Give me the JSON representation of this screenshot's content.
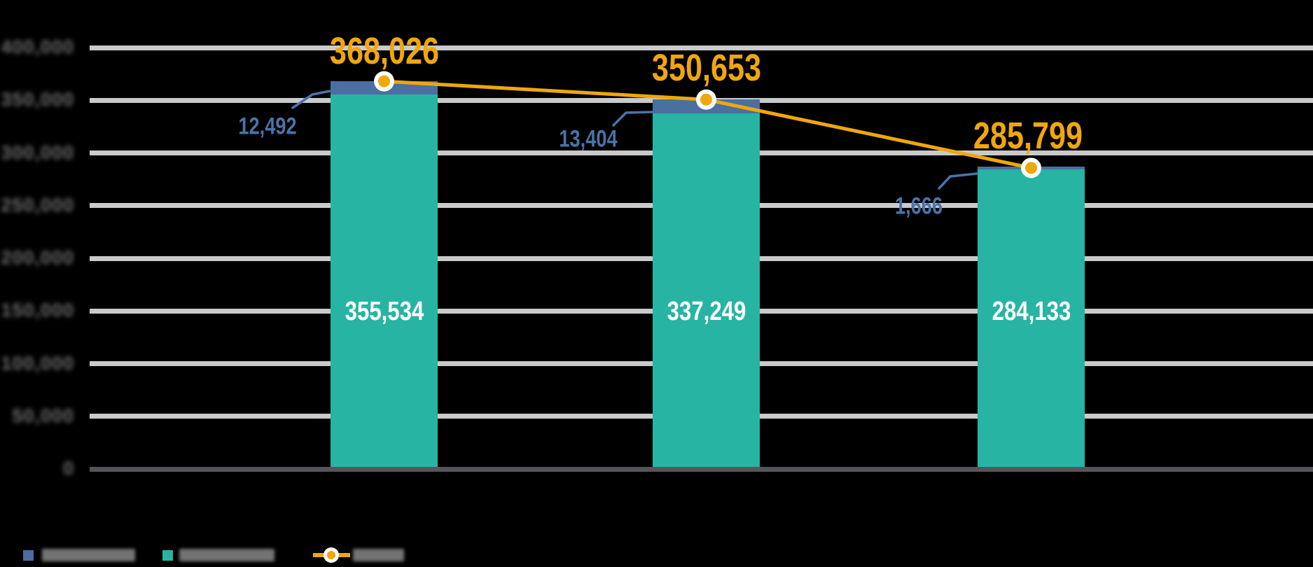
{
  "chart_data": {
    "type": "bar",
    "subtype": "stacked-bars-with-total-line",
    "title": "",
    "background": "#000000",
    "categories": [
      "",
      "",
      ""
    ],
    "x_axis_labels_visible": false,
    "series": [
      {
        "name": "",
        "name_redacted_blurred": true,
        "role": "bar-segment-bottom",
        "color": "#27B4A3",
        "values": [
          355534,
          337249,
          284133
        ],
        "labels": [
          "355,534",
          "337,249",
          "284,133"
        ]
      },
      {
        "name": "",
        "name_redacted_blurred": true,
        "role": "bar-segment-top-cap",
        "color": "#4A6FA0",
        "values": [
          12492,
          13404,
          1666
        ],
        "labels": [
          "12,492",
          "13,404",
          "1,666"
        ]
      },
      {
        "name": "",
        "name_redacted_blurred": true,
        "role": "line-of-totals",
        "color": "#F0A70C",
        "values": [
          368026,
          350653,
          285799
        ],
        "labels": [
          "368,026",
          "350,653",
          "285,799"
        ]
      }
    ],
    "ylim": [
      0,
      400000
    ],
    "yticks": {
      "values": [
        400000,
        350000,
        300000,
        250000,
        200000,
        150000,
        100000,
        50000,
        0
      ],
      "labels": [
        "400,000",
        "350,000",
        "300,000",
        "250,000",
        "200,000",
        "150,000",
        "100,000",
        "50,000",
        "0"
      ],
      "redacted_blurred": true
    },
    "grid": "horizontal",
    "legend": {
      "position": "bottom-left",
      "items": [
        {
          "swatch": "square",
          "color": "#4A6FA0",
          "label": "",
          "label_redacted_blurred": true
        },
        {
          "swatch": "square",
          "color": "#27B4A3",
          "label": "",
          "label_redacted_blurred": true
        },
        {
          "swatch": "line-marker",
          "color": "#F0A70C",
          "label": "",
          "label_redacted_blurred": true
        }
      ]
    },
    "colors": {
      "bar_teal": "#27B4A3",
      "bar_cap_blue": "#4A6FA0",
      "line_yellow": "#F0A70C",
      "annotation_blue_text": "#4A73A7",
      "gridline_light": "#C9CACB",
      "axis_baseline_dark": "#55565A",
      "bar_value_text": "#FFFFFF",
      "ytick_text_blurred": "#6B6B6B",
      "legend_text_blob": "#737373",
      "marker_halo": "#FFFFFF",
      "background": "#000000"
    }
  }
}
